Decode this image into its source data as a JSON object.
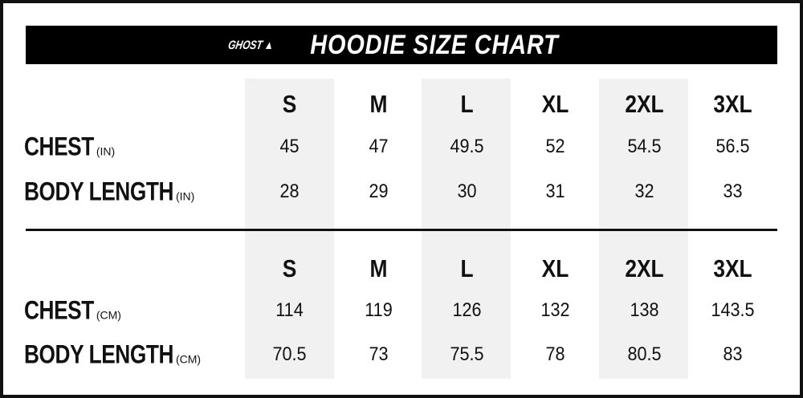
{
  "header": {
    "logo": "GHOST",
    "title": "HOODIE SIZE CHART"
  },
  "imperial": {
    "sizes": [
      "S",
      "M",
      "L",
      "XL",
      "2XL",
      "3XL"
    ],
    "rows": [
      {
        "label": "CHEST",
        "unit": "(IN)",
        "values": [
          "45",
          "47",
          "49.5",
          "52",
          "54.5",
          "56.5"
        ]
      },
      {
        "label": "BODY LENGTH",
        "unit": "(IN)",
        "values": [
          "28",
          "29",
          "30",
          "31",
          "32",
          "33"
        ]
      }
    ]
  },
  "metric": {
    "sizes": [
      "S",
      "M",
      "L",
      "XL",
      "2XL",
      "3XL"
    ],
    "rows": [
      {
        "label": "CHEST",
        "unit": "(CM)",
        "values": [
          "114",
          "119",
          "126",
          "132",
          "138",
          "143.5"
        ]
      },
      {
        "label": "BODY LENGTH",
        "unit": "(CM)",
        "values": [
          "70.5",
          "73",
          "75.5",
          "78",
          "80.5",
          "83"
        ]
      }
    ]
  }
}
